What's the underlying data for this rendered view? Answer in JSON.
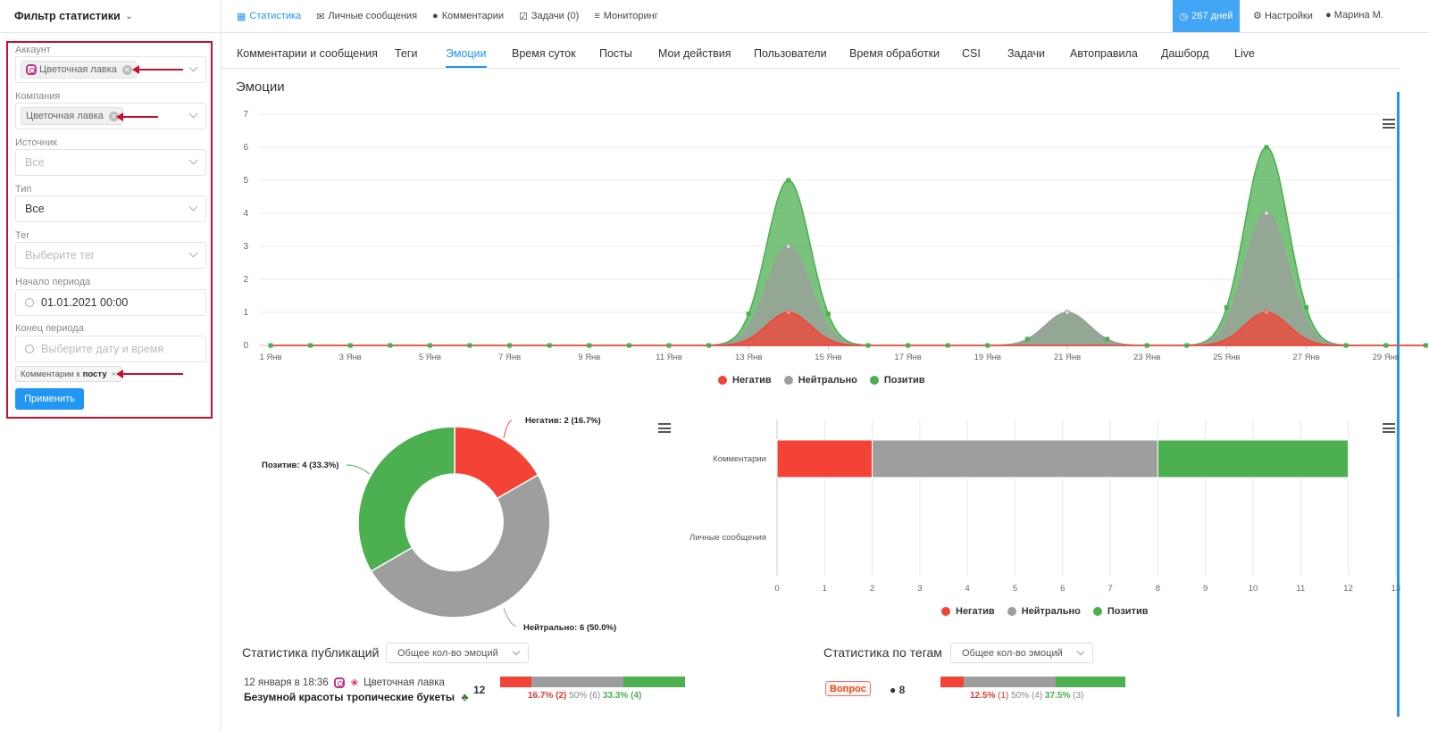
{
  "sidebar": {
    "title": "Фильтр статистики",
    "account": {
      "label": "Аккаунт",
      "chip": "Цветочная лавка"
    },
    "company": {
      "label": "Компания",
      "chip": "Цветочная лавка"
    },
    "source": {
      "label": "Источник",
      "value": "Все"
    },
    "type": {
      "label": "Тип",
      "value": "Все"
    },
    "tag": {
      "label": "Тег",
      "placeholder": "Выберите тег"
    },
    "start": {
      "label": "Начало периода",
      "value": "01.01.2021 00:00"
    },
    "end": {
      "label": "Конец периода",
      "placeholder": "Выберите дату и время"
    },
    "tag_chip": {
      "prefix": "Комментарии к",
      "bold": "посту",
      "close": "×"
    },
    "apply_label": "Применить"
  },
  "topnav": {
    "items": [
      "Статистика",
      "Личные сообщения",
      "Комментарии",
      "Задачи (0)",
      "Мониторинг"
    ],
    "days": "267 дней",
    "settings": "Настройки",
    "user": "Марина М."
  },
  "tabs": [
    "Комментарии и сообщения",
    "Теги",
    "Эмоции",
    "Время суток",
    "Посты",
    "Мои действия",
    "Пользователи",
    "Время обработки",
    "CSI",
    "Задачи",
    "Автоправила",
    "Дашборд",
    "Live"
  ],
  "section_title": "Эмоции",
  "colors": {
    "negative": "#f44336",
    "neutral": "#9e9e9e",
    "positive": "#4caf50",
    "accent": "#2196f3"
  },
  "legend": [
    "Негатив",
    "Нейтрально",
    "Позитив"
  ],
  "chart_data": [
    {
      "type": "area",
      "x_ticks": [
        "1 Янв",
        "3 Янв",
        "5 Янв",
        "7 Янв",
        "9 Янв",
        "11 Янв",
        "13 Янв",
        "15 Янв",
        "17 Янв",
        "19 Янв",
        "21 Янв",
        "23 Янв",
        "25 Янв",
        "27 Янв",
        "29 Янв"
      ],
      "y_ticks": [
        "0",
        "1",
        "2",
        "3",
        "4",
        "5",
        "6",
        "7"
      ],
      "ylim": [
        0,
        7
      ],
      "stacked": true,
      "series": [
        {
          "name": "Негатив",
          "peaks": [
            {
              "day": 14,
              "value": 1
            },
            {
              "day": 26,
              "value": 1
            }
          ]
        },
        {
          "name": "Нейтрально",
          "peaks": [
            {
              "day": 14,
              "value": 2
            },
            {
              "day": 21,
              "value": 1
            },
            {
              "day": 26,
              "value": 3
            }
          ]
        },
        {
          "name": "Позитив",
          "peaks": [
            {
              "day": 14,
              "value": 2
            },
            {
              "day": 26,
              "value": 2
            }
          ]
        }
      ],
      "cumulative_peaks": [
        {
          "day": 14,
          "value": 5
        },
        {
          "day": 21,
          "value": 1
        },
        {
          "day": 26,
          "value": 6
        }
      ]
    },
    {
      "type": "pie",
      "donut": true,
      "slices": [
        {
          "name": "Негатив",
          "value": 2,
          "label": "Негатив: 2 (16.7%)"
        },
        {
          "name": "Нейтрально",
          "value": 6,
          "label": "Нейтрально: 6 (50.0%)"
        },
        {
          "name": "Позитив",
          "value": 4,
          "label": "Позитив: 4 (33.3%)"
        }
      ]
    },
    {
      "type": "bar",
      "orientation": "horizontal",
      "stacked": true,
      "categories": [
        "Комментарии",
        "Личные сообщения"
      ],
      "x_ticks": [
        "0",
        "1",
        "2",
        "3",
        "4",
        "5",
        "6",
        "7",
        "8",
        "9",
        "10",
        "11",
        "12",
        "13"
      ],
      "xlim": [
        0,
        13
      ],
      "series": [
        {
          "name": "Негатив",
          "values": [
            2,
            0
          ]
        },
        {
          "name": "Нейтрально",
          "values": [
            6,
            0
          ]
        },
        {
          "name": "Позитив",
          "values": [
            4,
            0
          ]
        }
      ]
    }
  ],
  "pub_stats": {
    "title": "Статистика публикаций",
    "select": "Общее кол-во эмоций",
    "date": "12 января в 18:36",
    "account": "Цветочная лавка",
    "post": "Безумной красоты тропические букеты",
    "count": "12",
    "neg": 16.7,
    "neu": 50,
    "pos": 33.3,
    "neg_txt": "16.7%",
    "neg_cnt": "(2)",
    "neu_txt": "50%",
    "neu_cnt": "(6)",
    "pos_txt": "33.3%",
    "pos_cnt": "(4)"
  },
  "tag_stats": {
    "title": "Статистика по тегам",
    "select": "Общее кол-во эмоций",
    "tag": "Вопрос",
    "count": "8",
    "neg": 12.5,
    "neu": 50,
    "pos": 37.5,
    "neg_txt": "12.5%",
    "neg_cnt": "(1)",
    "neu_txt": "50%",
    "neu_cnt": "(4)",
    "pos_txt": "37.5%",
    "pos_cnt": "(3)"
  }
}
